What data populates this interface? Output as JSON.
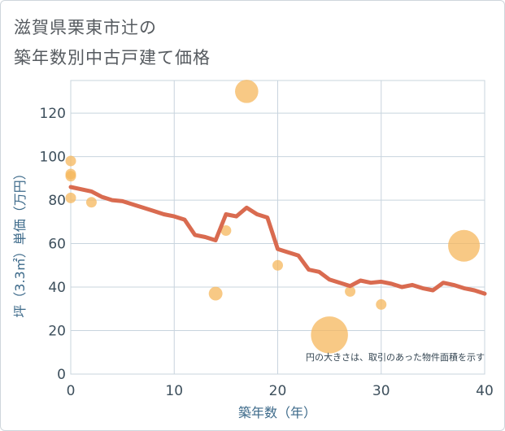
{
  "title_line1": "滋賀県栗東市辻の",
  "title_line2": "築年数別中古戸建て価格",
  "chart_data": {
    "type": "scatter",
    "title": "滋賀県栗東市辻の 築年数別中古戸建て価格",
    "xlabel": "築年数（年）",
    "ylabel": "坪（3.3㎡）単価（万円）",
    "xlim": [
      0,
      40
    ],
    "ylim": [
      0,
      135
    ],
    "xticks": [
      0,
      10,
      20,
      30,
      40
    ],
    "yticks": [
      0,
      20,
      40,
      60,
      80,
      100,
      120
    ],
    "grid": true,
    "note": "円の大きさは、取引のあった物件面積を示す",
    "colors": {
      "bubble": "#f5b75c",
      "line": "#d96b50",
      "grid": "#c8d4de"
    },
    "bubbles": [
      {
        "x": 0,
        "y": 98,
        "size": 1
      },
      {
        "x": 0,
        "y": 92,
        "size": 1
      },
      {
        "x": 0,
        "y": 91,
        "size": 1
      },
      {
        "x": 0,
        "y": 81,
        "size": 1
      },
      {
        "x": 2,
        "y": 79,
        "size": 1
      },
      {
        "x": 14,
        "y": 37,
        "size": 1.3
      },
      {
        "x": 15,
        "y": 66,
        "size": 1
      },
      {
        "x": 17,
        "y": 130,
        "size": 2.2
      },
      {
        "x": 20,
        "y": 50,
        "size": 1
      },
      {
        "x": 25,
        "y": 18,
        "size": 3.5
      },
      {
        "x": 27,
        "y": 38,
        "size": 1
      },
      {
        "x": 30,
        "y": 32,
        "size": 1
      },
      {
        "x": 38,
        "y": 59,
        "size": 3.0
      }
    ],
    "trend": {
      "x": [
        0,
        2,
        3,
        4,
        5,
        6,
        7,
        8,
        9,
        10,
        11,
        12,
        13,
        14,
        15,
        16,
        17,
        18,
        19,
        20,
        21,
        22,
        23,
        24,
        25,
        26,
        27,
        28,
        29,
        30,
        31,
        32,
        33,
        34,
        35,
        36,
        37,
        38,
        39,
        40
      ],
      "y": [
        86,
        84,
        81.5,
        80,
        79.5,
        78,
        76.5,
        75,
        73.5,
        72.5,
        71,
        64,
        63,
        61.5,
        73.5,
        72.5,
        76.5,
        73.5,
        72,
        57.5,
        56,
        54.5,
        48,
        47,
        43.5,
        42,
        40.5,
        43,
        42,
        42.5,
        41.5,
        40,
        41,
        39.5,
        38.5,
        42,
        41,
        39.5,
        38.5,
        37
      ]
    }
  }
}
